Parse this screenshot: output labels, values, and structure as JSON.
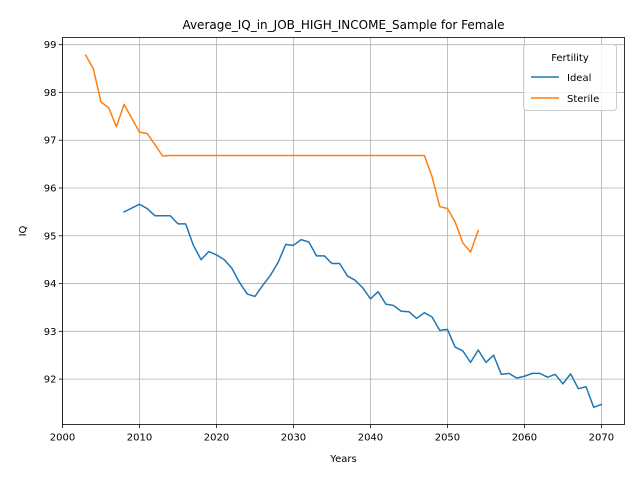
{
  "chart_data": {
    "type": "line",
    "title": "Average_IQ_in_JOB_HIGH_INCOME_Sample for Female",
    "xlabel": "Years",
    "ylabel": "IQ",
    "xlim": [
      2000,
      2073
    ],
    "ylim": [
      91.05,
      99.15
    ],
    "xticks": [
      2000,
      2010,
      2020,
      2030,
      2040,
      2050,
      2060,
      2070
    ],
    "yticks": [
      92,
      93,
      94,
      95,
      96,
      97,
      98,
      99
    ],
    "grid": true,
    "legend": {
      "title": "Fertility",
      "placement": "top-right"
    },
    "series": [
      {
        "name": "Ideal",
        "color": "#1f77b4",
        "x": [
          2008,
          2009,
          2010,
          2011,
          2012,
          2013,
          2014,
          2015,
          2016,
          2017,
          2018,
          2019,
          2020,
          2021,
          2022,
          2023,
          2024,
          2025,
          2026,
          2027,
          2028,
          2029,
          2030,
          2031,
          2032,
          2033,
          2034,
          2035,
          2036,
          2037,
          2038,
          2039,
          2040,
          2041,
          2042,
          2043,
          2044,
          2045,
          2046,
          2047,
          2048,
          2049,
          2050,
          2051,
          2052,
          2053,
          2054,
          2055,
          2056,
          2057,
          2058,
          2059,
          2060,
          2061,
          2062,
          2063,
          2064,
          2065,
          2066,
          2067,
          2068,
          2069,
          2070
        ],
        "values": [
          95.5,
          95.58,
          95.66,
          95.57,
          95.42,
          95.42,
          95.42,
          95.25,
          95.25,
          94.8,
          94.5,
          94.67,
          94.6,
          94.5,
          94.32,
          94.02,
          93.78,
          93.73,
          93.96,
          94.17,
          94.44,
          94.82,
          94.8,
          94.92,
          94.87,
          94.58,
          94.58,
          94.42,
          94.42,
          94.16,
          94.07,
          93.91,
          93.68,
          93.83,
          93.57,
          93.54,
          93.42,
          93.41,
          93.27,
          93.39,
          93.3,
          93.02,
          93.04,
          92.67,
          92.59,
          92.35,
          92.61,
          92.35,
          92.5,
          92.1,
          92.12,
          92.02,
          92.06,
          92.12,
          92.12,
          92.04,
          92.1,
          91.9,
          92.11,
          91.8,
          91.84,
          91.41,
          91.47
        ]
      },
      {
        "name": "Sterile",
        "color": "#ff7f0e",
        "x": [
          2003,
          2004,
          2005,
          2006,
          2007,
          2008,
          2009,
          2010,
          2011,
          2012,
          2013,
          2014,
          2015,
          2020,
          2025,
          2030,
          2035,
          2040,
          2045,
          2047,
          2048,
          2049,
          2050,
          2051,
          2052,
          2053,
          2054
        ],
        "values": [
          98.78,
          98.5,
          97.8,
          97.68,
          97.28,
          97.75,
          97.46,
          97.17,
          97.14,
          96.91,
          96.67,
          96.68,
          96.68,
          96.68,
          96.68,
          96.68,
          96.68,
          96.68,
          96.68,
          96.68,
          96.24,
          95.61,
          95.57,
          95.29,
          94.85,
          94.66,
          95.11
        ]
      }
    ]
  }
}
